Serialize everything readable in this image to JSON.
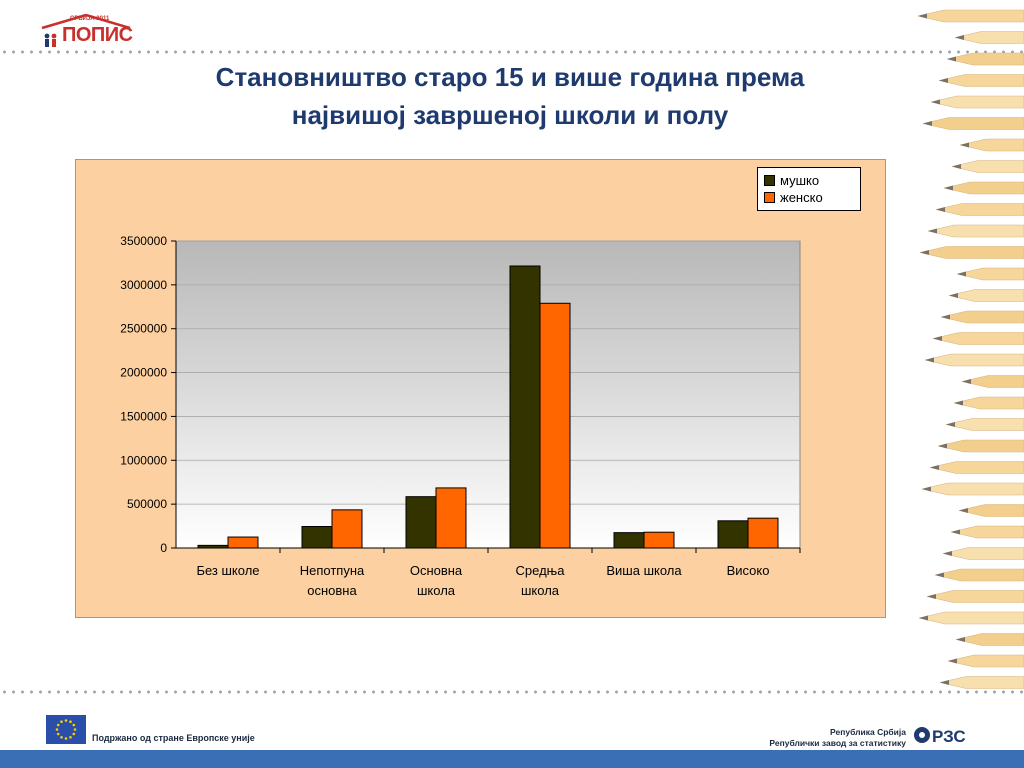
{
  "header": {
    "logo_year": "СРБИЈА 2011",
    "logo_word": "ПОПИС",
    "title_line1": "Становништво старо 15 и више година према",
    "title_line2": "највишој завршеној школи и полу"
  },
  "chart_data": {
    "type": "bar",
    "categories": [
      [
        "Без школе"
      ],
      [
        "Непотпуна",
        "основна"
      ],
      [
        "Основна",
        "школа"
      ],
      [
        "Средња",
        "школа"
      ],
      [
        "Виша школа"
      ],
      [
        "Високо"
      ]
    ],
    "series": [
      {
        "name": "мушко",
        "color": "#333300",
        "values": [
          30000,
          245000,
          585000,
          3215000,
          175000,
          310000
        ]
      },
      {
        "name": "женско",
        "color": "#ff6600",
        "values": [
          125000,
          435000,
          685000,
          2790000,
          180000,
          340000
        ]
      }
    ],
    "yticks": [
      "0",
      "500000",
      "1000000",
      "1500000",
      "2000000",
      "2500000",
      "3000000",
      "3500000"
    ],
    "ylim": [
      0,
      3500000
    ],
    "title": "",
    "xlabel": "",
    "ylabel": "",
    "grid": true,
    "legend_position": "top-right",
    "plot_background": "gradient gray to white"
  },
  "footer": {
    "eu_support": "Подржано од стране Европске уније",
    "institution_line1": "Република Србија",
    "institution_line2": "Републички завод за статистику",
    "rzs_logo_text": "РЗС"
  }
}
